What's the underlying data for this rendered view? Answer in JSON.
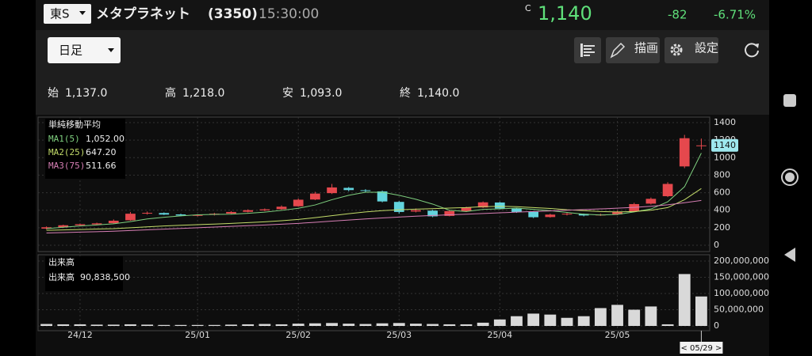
{
  "header": {
    "market": "東S",
    "name": "メタプラネット",
    "code": "(3350)",
    "time": "15:30:00",
    "price_flag": "C",
    "price": "1,140",
    "change": "-82",
    "change_pct": "-6.71%"
  },
  "toolbar": {
    "period": "日足",
    "draw": "描画",
    "settings": "設定"
  },
  "ohlc": [
    {
      "label": "始",
      "value": "1,137.0"
    },
    {
      "label": "高",
      "value": "1,218.0"
    },
    {
      "label": "安",
      "value": "1,093.0"
    },
    {
      "label": "終",
      "value": "1,140.0"
    }
  ],
  "chart_data": [
    {
      "type": "candlestick",
      "ma_title": "単純移動平均",
      "categories": [
        null,
        null,
        "24/12",
        null,
        null,
        null,
        null,
        null,
        null,
        "25/01",
        null,
        null,
        null,
        null,
        null,
        "25/02",
        null,
        null,
        null,
        null,
        null,
        "25/03",
        null,
        null,
        null,
        null,
        null,
        "25/04",
        null,
        null,
        null,
        null,
        null,
        null,
        "25/05",
        null,
        null,
        null,
        null,
        null
      ],
      "open": [
        190,
        205,
        228,
        238,
        252,
        285,
        362,
        368,
        352,
        338,
        348,
        362,
        382,
        398,
        412,
        445,
        522,
        595,
        655,
        628,
        615,
        495,
        385,
        395,
        335,
        388,
        432,
        488,
        418,
        382,
        322,
        352,
        358,
        342,
        352,
        385,
        475,
        560,
        900,
        1137
      ],
      "high": [
        215,
        235,
        248,
        258,
        295,
        380,
        385,
        375,
        360,
        355,
        370,
        390,
        410,
        420,
        455,
        535,
        610,
        700,
        665,
        640,
        625,
        505,
        420,
        405,
        400,
        440,
        500,
        495,
        425,
        390,
        360,
        370,
        362,
        360,
        395,
        485,
        545,
        720,
        1260,
        1218
      ],
      "low": [
        180,
        198,
        220,
        230,
        245,
        280,
        350,
        345,
        330,
        330,
        340,
        355,
        375,
        390,
        405,
        440,
        515,
        585,
        615,
        600,
        490,
        360,
        375,
        320,
        330,
        380,
        425,
        410,
        370,
        310,
        315,
        340,
        330,
        335,
        345,
        380,
        465,
        550,
        880,
        1093
      ],
      "close": [
        205,
        228,
        240,
        250,
        280,
        360,
        370,
        350,
        340,
        345,
        360,
        380,
        400,
        410,
        440,
        520,
        590,
        660,
        630,
        620,
        500,
        380,
        400,
        330,
        390,
        430,
        490,
        420,
        380,
        320,
        350,
        360,
        340,
        350,
        380,
        470,
        530,
        700,
        1222,
        1140
      ],
      "up_color": "#e5484d",
      "down_color": "#62d4dd",
      "series": [
        {
          "name": "MA1(5)",
          "legend_value": "1,052.00",
          "color": "#7fd07f",
          "values": [
            190,
            205,
            220,
            232,
            245,
            270,
            300,
            320,
            335,
            348,
            352,
            355,
            365,
            378,
            398,
            422,
            460,
            520,
            570,
            605,
            605,
            570,
            525,
            470,
            400,
            385,
            410,
            415,
            425,
            410,
            395,
            375,
            355,
            345,
            352,
            380,
            414,
            496,
            668,
            1052
          ]
        },
        {
          "name": "MA2(25)",
          "legend_value": "647.20",
          "color": "#c3dc6a",
          "values": [
            170,
            175,
            180,
            185,
            190,
            200,
            210,
            220,
            228,
            235,
            242,
            250,
            258,
            268,
            280,
            295,
            315,
            338,
            360,
            380,
            395,
            405,
            412,
            418,
            425,
            430,
            440,
            445,
            440,
            430,
            420,
            405,
            395,
            385,
            380,
            385,
            400,
            430,
            520,
            647.2
          ]
        },
        {
          "name": "MA3(75)",
          "legend_value": "511.66",
          "color": "#d77fb5",
          "values": [
            140,
            145,
            150,
            155,
            160,
            168,
            176,
            184,
            192,
            200,
            208,
            216,
            224,
            232,
            240,
            250,
            262,
            275,
            288,
            300,
            312,
            322,
            332,
            340,
            348,
            355,
            362,
            370,
            378,
            385,
            392,
            400,
            408,
            415,
            423,
            432,
            445,
            462,
            485,
            511.66
          ]
        }
      ],
      "ylim": [
        0,
        1400
      ],
      "yticks": [
        0,
        200,
        400,
        600,
        800,
        1000,
        1200,
        1400
      ],
      "grid": true,
      "price_tag": 1140,
      "cursor_label": "< 05/29 >"
    },
    {
      "type": "bar",
      "title": "出来高",
      "series_name": "出来高",
      "last_label": "90,838,500",
      "color": "#d9d9d9",
      "values": [
        6000000,
        5000000,
        5000000,
        4000000,
        4000000,
        5000000,
        4000000,
        3000000,
        3000000,
        3000000,
        3000000,
        4000000,
        5000000,
        6000000,
        5000000,
        7000000,
        8000000,
        9000000,
        7000000,
        6000000,
        8000000,
        9000000,
        7000000,
        6000000,
        5000000,
        5000000,
        10000000,
        20000000,
        30000000,
        38000000,
        35000000,
        25000000,
        30000000,
        55000000,
        65000000,
        50000000,
        60000000,
        5000000,
        160000000,
        90838500
      ],
      "ylim": [
        0,
        200000000
      ],
      "yticks": [
        {
          "value": 0,
          "label": "0"
        },
        {
          "value": 50000000,
          "label": "50,000,000"
        },
        {
          "value": 100000000,
          "label": "100,000,000"
        },
        {
          "value": 150000000,
          "label": "150,000,000"
        },
        {
          "value": 200000000,
          "label": "200,000,000"
        }
      ],
      "grid": true
    }
  ]
}
